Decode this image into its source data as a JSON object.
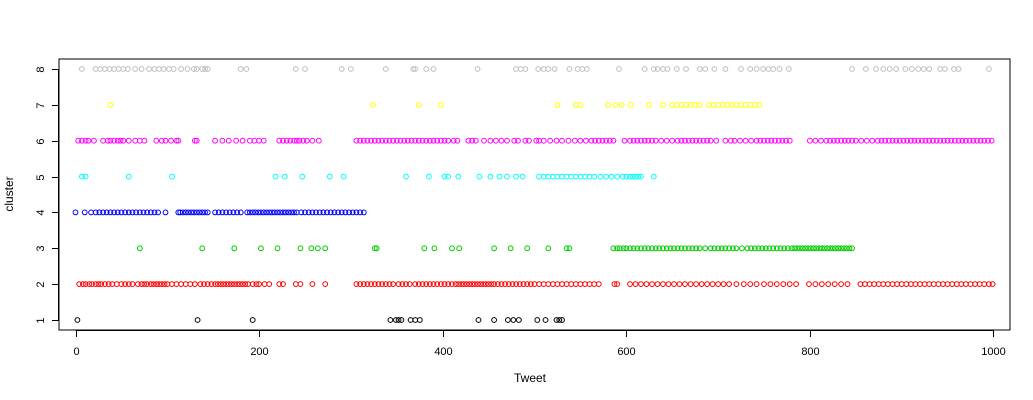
{
  "chart_data": {
    "type": "scatter",
    "title": "",
    "xlabel": "Tweet",
    "ylabel": "cluster",
    "xlim": [
      -18,
      1018
    ],
    "ylim": [
      0.72,
      8.28
    ],
    "xticks": [
      0,
      200,
      400,
      600,
      800,
      1000
    ],
    "xtick_labels": [
      "0",
      "200",
      "400",
      "600",
      "800",
      "1000"
    ],
    "yticks": [
      1,
      2,
      3,
      4,
      5,
      6,
      7,
      8
    ],
    "ytick_labels": [
      "1",
      "2",
      "3",
      "4",
      "5",
      "6",
      "7",
      "8"
    ],
    "grid": false,
    "legend": "none",
    "marker": "open-circle",
    "series": [
      {
        "cluster": 1,
        "color": "#000000",
        "x": [
          2,
          133,
          193,
          343,
          349,
          352,
          355,
          365,
          370,
          375,
          439,
          456,
          471,
          477,
          483,
          503,
          512,
          524,
          527,
          530
        ]
      },
      {
        "cluster": 2,
        "color": "#ff0000",
        "x": [
          4,
          8,
          11,
          15,
          18,
          22,
          25,
          28,
          32,
          36,
          40,
          45,
          50,
          54,
          58,
          62,
          68,
          72,
          75,
          78,
          82,
          85,
          88,
          91,
          94,
          97,
          100,
          105,
          110,
          115,
          120,
          125,
          130,
          136,
          140,
          144,
          148,
          152,
          155,
          158,
          161,
          164,
          167,
          170,
          173,
          176,
          179,
          182,
          185,
          188,
          193,
          197,
          200,
          206,
          211,
          222,
          226,
          240,
          245,
          258,
          272,
          306,
          310,
          314,
          318,
          322,
          326,
          330,
          334,
          338,
          342,
          346,
          352,
          356,
          360,
          364,
          370,
          374,
          378,
          382,
          386,
          390,
          394,
          398,
          402,
          406,
          410,
          414,
          417,
          420,
          423,
          426,
          429,
          432,
          435,
          438,
          441,
          444,
          447,
          450,
          453,
          456,
          460,
          464,
          468,
          472,
          476,
          480,
          484,
          488,
          492,
          496,
          500,
          505,
          510,
          515,
          520,
          525,
          530,
          535,
          540,
          545,
          550,
          555,
          560,
          565,
          570,
          587,
          590,
          604,
          610,
          616,
          622,
          628,
          634,
          640,
          646,
          652,
          658,
          664,
          670,
          676,
          682,
          688,
          694,
          700,
          706,
          712,
          720,
          728,
          735,
          742,
          750,
          757,
          764,
          771,
          778,
          785,
          799,
          806,
          813,
          820,
          827,
          834,
          841,
          855,
          860,
          865,
          870,
          875,
          880,
          885,
          890,
          895,
          900,
          905,
          910,
          915,
          920,
          925,
          930,
          935,
          940,
          945,
          950,
          955,
          960,
          965,
          970,
          975,
          980,
          985,
          990,
          995,
          999
        ]
      },
      {
        "cluster": 3,
        "color": "#00cd00",
        "x": [
          70,
          138,
          173,
          202,
          220,
          245,
          257,
          264,
          272,
          326,
          328,
          380,
          391,
          410,
          418,
          456,
          474,
          492,
          515,
          535,
          538,
          586,
          590,
          593,
          597,
          600,
          604,
          608,
          612,
          616,
          620,
          624,
          628,
          632,
          636,
          640,
          644,
          648,
          652,
          656,
          660,
          664,
          668,
          672,
          676,
          680,
          686,
          692,
          696,
          700,
          704,
          708,
          712,
          716,
          720,
          726,
          732,
          736,
          740,
          744,
          748,
          752,
          756,
          760,
          764,
          768,
          772,
          776,
          780,
          783,
          786,
          789,
          792,
          795,
          798,
          801,
          804,
          807,
          810,
          813,
          816,
          819,
          822,
          825,
          828,
          831,
          834,
          837,
          840,
          843,
          846
        ]
      },
      {
        "cluster": 4,
        "color": "#0000ff",
        "x": [
          0,
          10,
          17,
          22,
          26,
          30,
          34,
          38,
          42,
          46,
          50,
          54,
          58,
          62,
          66,
          70,
          74,
          78,
          82,
          86,
          90,
          98,
          112,
          114,
          117,
          120,
          123,
          126,
          129,
          132,
          135,
          138,
          141,
          144,
          152,
          156,
          160,
          164,
          168,
          172,
          176,
          180,
          187,
          190,
          193,
          196,
          199,
          202,
          205,
          208,
          211,
          214,
          217,
          220,
          223,
          226,
          229,
          232,
          235,
          238,
          241,
          246,
          250,
          254,
          258,
          262,
          266,
          270,
          274,
          278,
          282,
          286,
          290,
          294,
          298,
          302,
          306,
          310,
          314
        ]
      },
      {
        "cluster": 5,
        "color": "#00ffff",
        "x": [
          7,
          11,
          58,
          105,
          218,
          228,
          247,
          277,
          292,
          360,
          385,
          402,
          406,
          417,
          440,
          452,
          462,
          470,
          480,
          487,
          505,
          510,
          515,
          520,
          525,
          530,
          535,
          540,
          545,
          550,
          555,
          560,
          565,
          572,
          578,
          584,
          590,
          596,
          600,
          604,
          607,
          610,
          613,
          616,
          630
        ]
      },
      {
        "cluster": 6,
        "color": "#ff00ff",
        "x": [
          3,
          7,
          11,
          14,
          20,
          30,
          35,
          38,
          42,
          46,
          49,
          52,
          58,
          65,
          70,
          75,
          88,
          94,
          98,
          104,
          110,
          112,
          130,
          132,
          152,
          160,
          167,
          175,
          182,
          190,
          195,
          200,
          205,
          222,
          226,
          230,
          234,
          238,
          241,
          244,
          248,
          252,
          258,
          265,
          306,
          310,
          314,
          318,
          322,
          326,
          330,
          334,
          338,
          342,
          346,
          350,
          354,
          358,
          362,
          366,
          370,
          374,
          378,
          382,
          386,
          390,
          394,
          398,
          402,
          406,
          412,
          416,
          428,
          432,
          436,
          445,
          452,
          458,
          464,
          470,
          478,
          482,
          490,
          494,
          502,
          505,
          510,
          517,
          524,
          530,
          537,
          544,
          550,
          556,
          562,
          566,
          570,
          574,
          578,
          582,
          586,
          598,
          604,
          608,
          612,
          616,
          620,
          624,
          628,
          632,
          638,
          644,
          650,
          656,
          660,
          664,
          668,
          672,
          676,
          680,
          684,
          688,
          692,
          698,
          708,
          714,
          718,
          724,
          730,
          736,
          742,
          746,
          750,
          754,
          758,
          762,
          766,
          770,
          774,
          778,
          800,
          806,
          812,
          818,
          822,
          826,
          830,
          834,
          838,
          842,
          846,
          850,
          856,
          862,
          868,
          874,
          878,
          882,
          886,
          890,
          894,
          898,
          902,
          906,
          910,
          914,
          918,
          922,
          926,
          930,
          934,
          938,
          942,
          946,
          950,
          954,
          958,
          962,
          966,
          970,
          974,
          978,
          982,
          986,
          990,
          994,
          998
        ]
      },
      {
        "cluster": 7,
        "color": "#ffff00",
        "x": [
          38,
          324,
          374,
          398,
          525,
          545,
          550,
          580,
          588,
          595,
          605,
          625,
          640,
          650,
          655,
          660,
          665,
          670,
          675,
          680,
          690,
          695,
          700,
          705,
          710,
          715,
          720,
          725,
          730,
          735,
          740,
          745
        ]
      },
      {
        "cluster": 8,
        "color": "#bebebe",
        "x": [
          7,
          22,
          27,
          32,
          37,
          42,
          47,
          52,
          57,
          65,
          72,
          80,
          86,
          91,
          96,
          102,
          107,
          115,
          122,
          129,
          132,
          138,
          141,
          144,
          180,
          186,
          240,
          250,
          290,
          300,
          338,
          368,
          370,
          382,
          390,
          438,
          480,
          485,
          490,
          504,
          510,
          515,
          522,
          538,
          547,
          552,
          557,
          592,
          620,
          630,
          634,
          640,
          645,
          655,
          665,
          680,
          686,
          696,
          708,
          725,
          735,
          742,
          749,
          755,
          760,
          767,
          777,
          846,
          861,
          872,
          880,
          887,
          894,
          904,
          911,
          918,
          924,
          930,
          942,
          947,
          957,
          962,
          995
        ]
      }
    ]
  }
}
